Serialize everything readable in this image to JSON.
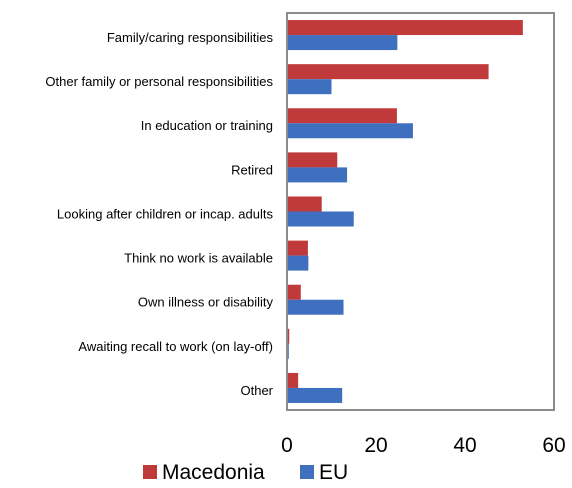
{
  "chart_data": {
    "type": "bar",
    "orientation": "horizontal",
    "categories": [
      "Family/caring responsibilities",
      "Other family or personal responsibilities",
      "In education or training",
      "Retired",
      "Looking after children or incap. adults",
      "Think no work is available",
      "Own illness or disability",
      "Awaiting recall to work (on lay-off)",
      "Other"
    ],
    "series": [
      {
        "name": "Macedonia",
        "color": "#C0393B",
        "values": [
          53,
          45.3,
          24.7,
          11.3,
          7.8,
          4.7,
          3.1,
          0.5,
          2.5
        ]
      },
      {
        "name": "EU",
        "color": "#3F6FBF",
        "values": [
          24.8,
          10,
          28.3,
          13.5,
          15,
          4.8,
          12.7,
          0.4,
          12.4
        ]
      }
    ],
    "xlim": [
      0,
      60
    ],
    "xticks": [
      "0",
      "20",
      "40",
      "60"
    ],
    "grid": false,
    "legend": "bottom",
    "title": "",
    "xlabel": "",
    "ylabel": ""
  }
}
